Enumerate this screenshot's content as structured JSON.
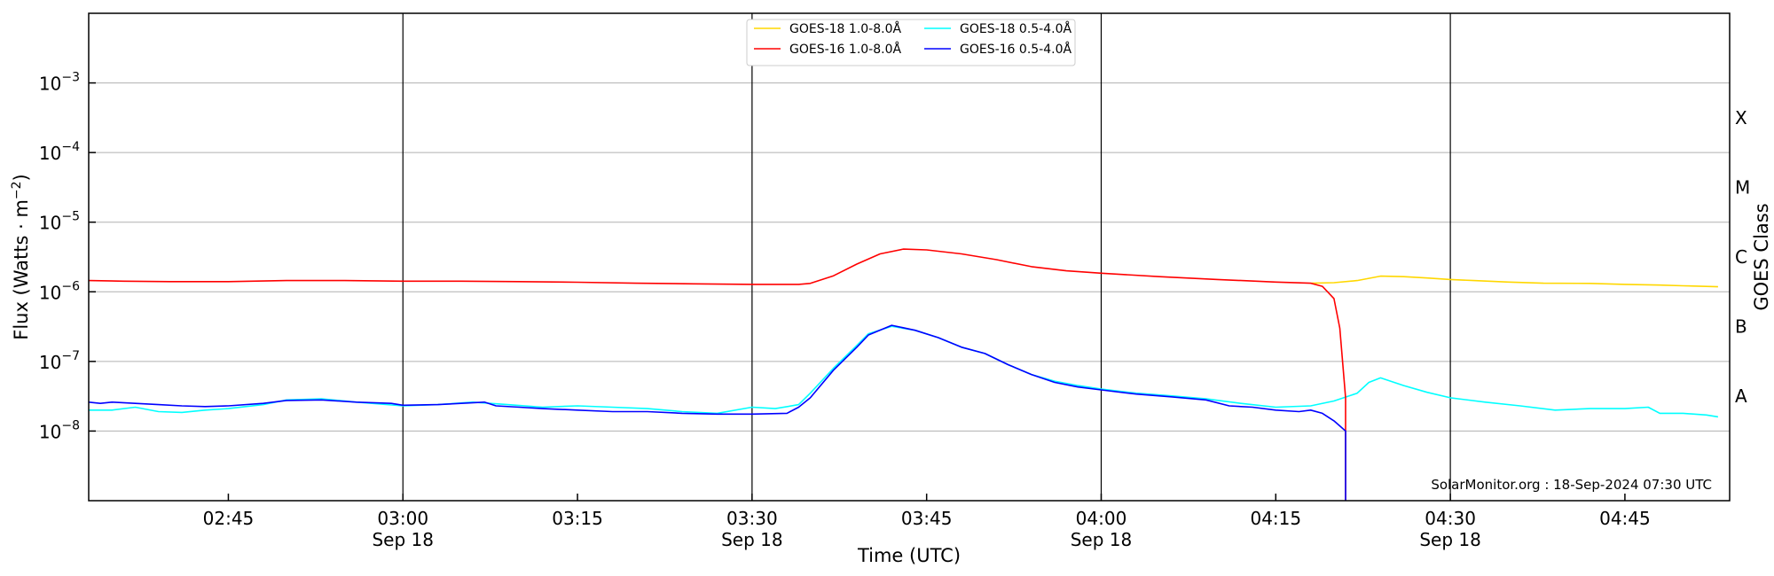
{
  "chart_data": {
    "type": "line",
    "xlabel": "Time (UTC)",
    "ylabel_main": "Flux (Watts · m",
    "ylabel_sup": "−2",
    "ylabel_close": ")",
    "right_label": "GOES Class",
    "credit": "SolarMonitor.org : 18-Sep-2024 07:30 UTC",
    "y_scale": "log",
    "ylim": [
      1e-09,
      0.01
    ],
    "xlim": [
      "02:33",
      "04:54"
    ],
    "grid": "horizontal",
    "legend_position": "top-center",
    "y_ticks": [
      {
        "value": 1e-08,
        "base": "10",
        "exp": "−8"
      },
      {
        "value": 1e-07,
        "base": "10",
        "exp": "−7"
      },
      {
        "value": 1e-06,
        "base": "10",
        "exp": "−6"
      },
      {
        "value": 1e-05,
        "base": "10",
        "exp": "−5"
      },
      {
        "value": 0.0001,
        "base": "10",
        "exp": "−4"
      },
      {
        "value": 0.001,
        "base": "10",
        "exp": "−3"
      }
    ],
    "x_ticks": [
      {
        "time": "02:45",
        "label": "02:45",
        "date": ""
      },
      {
        "time": "03:00",
        "label": "03:00",
        "date": "Sep 18"
      },
      {
        "time": "03:15",
        "label": "03:15",
        "date": ""
      },
      {
        "time": "03:30",
        "label": "03:30",
        "date": "Sep 18"
      },
      {
        "time": "03:45",
        "label": "03:45",
        "date": ""
      },
      {
        "time": "04:00",
        "label": "04:00",
        "date": "Sep 18"
      },
      {
        "time": "04:15",
        "label": "04:15",
        "date": ""
      },
      {
        "time": "04:30",
        "label": "04:30",
        "date": "Sep 18"
      },
      {
        "time": "04:45",
        "label": "04:45",
        "date": ""
      }
    ],
    "goes_classes": [
      {
        "label": "A",
        "value": 3.16e-08
      },
      {
        "label": "B",
        "value": 3.16e-07
      },
      {
        "label": "C",
        "value": 3.16e-06
      },
      {
        "label": "M",
        "value": 3.16e-05
      },
      {
        "label": "X",
        "value": 0.000316
      }
    ],
    "series": [
      {
        "name": "GOES-18 1.0-8.0Å",
        "color": "#ffd700",
        "points": [
          [
            "04:18",
            1.33e-06
          ],
          [
            "04:20",
            1.35e-06
          ],
          [
            "04:22",
            1.45e-06
          ],
          [
            "04:24",
            1.68e-06
          ],
          [
            "04:26",
            1.65e-06
          ],
          [
            "04:28",
            1.58e-06
          ],
          [
            "04:30",
            1.5e-06
          ],
          [
            "04:32",
            1.45e-06
          ],
          [
            "04:35",
            1.38e-06
          ],
          [
            "04:38",
            1.33e-06
          ],
          [
            "04:42",
            1.32e-06
          ],
          [
            "04:45",
            1.28e-06
          ],
          [
            "04:48",
            1.25e-06
          ],
          [
            "04:50",
            1.22e-06
          ],
          [
            "04:53",
            1.18e-06
          ]
        ]
      },
      {
        "name": "GOES-18 0.5-4.0Å",
        "color": "#00ffff",
        "points": [
          [
            "02:33",
            2e-08
          ],
          [
            "02:35",
            2e-08
          ],
          [
            "02:37",
            2.2e-08
          ],
          [
            "02:39",
            1.9e-08
          ],
          [
            "02:41",
            1.85e-08
          ],
          [
            "02:43",
            2e-08
          ],
          [
            "02:45",
            2.1e-08
          ],
          [
            "02:48",
            2.4e-08
          ],
          [
            "02:50",
            2.8e-08
          ],
          [
            "02:53",
            2.9e-08
          ],
          [
            "02:56",
            2.6e-08
          ],
          [
            "03:00",
            2.3e-08
          ],
          [
            "03:03",
            2.4e-08
          ],
          [
            "03:06",
            2.6e-08
          ],
          [
            "03:09",
            2.4e-08
          ],
          [
            "03:12",
            2.2e-08
          ],
          [
            "03:15",
            2.3e-08
          ],
          [
            "03:18",
            2.2e-08
          ],
          [
            "03:21",
            2.1e-08
          ],
          [
            "03:24",
            1.9e-08
          ],
          [
            "03:27",
            1.8e-08
          ],
          [
            "03:30",
            2.2e-08
          ],
          [
            "03:32",
            2.1e-08
          ],
          [
            "03:34",
            2.4e-08
          ],
          [
            "03:35",
            3.5e-08
          ],
          [
            "03:37",
            8e-08
          ],
          [
            "03:39",
            1.7e-07
          ],
          [
            "03:40",
            2.5e-07
          ],
          [
            "03:42",
            3.2e-07
          ],
          [
            "03:44",
            2.8e-07
          ],
          [
            "03:46",
            2.2e-07
          ],
          [
            "03:48",
            1.6e-07
          ],
          [
            "03:50",
            1.3e-07
          ],
          [
            "03:52",
            9e-08
          ],
          [
            "03:54",
            6.5e-08
          ],
          [
            "03:56",
            5.2e-08
          ],
          [
            "03:58",
            4.5e-08
          ],
          [
            "04:00",
            4e-08
          ],
          [
            "04:03",
            3.5e-08
          ],
          [
            "04:06",
            3.2e-08
          ],
          [
            "04:09",
            2.9e-08
          ],
          [
            "04:12",
            2.5e-08
          ],
          [
            "04:15",
            2.2e-08
          ],
          [
            "04:18",
            2.3e-08
          ],
          [
            "04:20",
            2.7e-08
          ],
          [
            "04:22",
            3.5e-08
          ],
          [
            "04:23",
            5e-08
          ],
          [
            "04:24",
            5.8e-08
          ],
          [
            "04:26",
            4.5e-08
          ],
          [
            "04:28",
            3.6e-08
          ],
          [
            "04:30",
            3e-08
          ],
          [
            "04:33",
            2.6e-08
          ],
          [
            "04:36",
            2.3e-08
          ],
          [
            "04:39",
            2e-08
          ],
          [
            "04:42",
            2.1e-08
          ],
          [
            "04:45",
            2.1e-08
          ],
          [
            "04:47",
            2.2e-08
          ],
          [
            "04:48",
            1.8e-08
          ],
          [
            "04:50",
            1.8e-08
          ],
          [
            "04:52",
            1.7e-08
          ],
          [
            "04:53",
            1.6e-08
          ]
        ]
      },
      {
        "name": "GOES-16 1.0-8.0Å",
        "color": "#ff0000",
        "points": [
          [
            "02:33",
            1.45e-06
          ],
          [
            "02:36",
            1.42e-06
          ],
          [
            "02:40",
            1.4e-06
          ],
          [
            "02:45",
            1.4e-06
          ],
          [
            "02:50",
            1.45e-06
          ],
          [
            "02:55",
            1.45e-06
          ],
          [
            "03:00",
            1.42e-06
          ],
          [
            "03:05",
            1.42e-06
          ],
          [
            "03:10",
            1.4e-06
          ],
          [
            "03:15",
            1.37e-06
          ],
          [
            "03:20",
            1.33e-06
          ],
          [
            "03:25",
            1.3e-06
          ],
          [
            "03:30",
            1.28e-06
          ],
          [
            "03:34",
            1.28e-06
          ],
          [
            "03:35",
            1.32e-06
          ],
          [
            "03:37",
            1.7e-06
          ],
          [
            "03:39",
            2.5e-06
          ],
          [
            "03:41",
            3.5e-06
          ],
          [
            "03:43",
            4.1e-06
          ],
          [
            "03:45",
            4e-06
          ],
          [
            "03:48",
            3.5e-06
          ],
          [
            "03:51",
            2.9e-06
          ],
          [
            "03:54",
            2.3e-06
          ],
          [
            "03:57",
            2e-06
          ],
          [
            "04:00",
            1.85e-06
          ],
          [
            "04:05",
            1.65e-06
          ],
          [
            "04:10",
            1.5e-06
          ],
          [
            "04:15",
            1.38e-06
          ],
          [
            "04:18",
            1.33e-06
          ],
          [
            "04:19",
            1.2e-06
          ],
          [
            "04:20",
            8e-07
          ],
          [
            "04:20.5",
            3e-07
          ],
          [
            "04:21",
            3e-08
          ],
          [
            "04:21",
            1e-09
          ]
        ]
      },
      {
        "name": "GOES-16 0.5-4.0Å",
        "color": "#0000ff",
        "points": [
          [
            "02:33",
            2.6e-08
          ],
          [
            "02:34",
            2.5e-08
          ],
          [
            "02:35",
            2.6e-08
          ],
          [
            "02:37",
            2.5e-08
          ],
          [
            "02:39",
            2.4e-08
          ],
          [
            "02:41",
            2.3e-08
          ],
          [
            "02:43",
            2.25e-08
          ],
          [
            "02:45",
            2.3e-08
          ],
          [
            "02:48",
            2.5e-08
          ],
          [
            "02:50",
            2.75e-08
          ],
          [
            "02:53",
            2.8e-08
          ],
          [
            "02:56",
            2.6e-08
          ],
          [
            "02:59",
            2.5e-08
          ],
          [
            "03:00",
            2.35e-08
          ],
          [
            "03:03",
            2.4e-08
          ],
          [
            "03:05",
            2.5e-08
          ],
          [
            "03:07",
            2.6e-08
          ],
          [
            "03:08",
            2.3e-08
          ],
          [
            "03:10",
            2.2e-08
          ],
          [
            "03:12",
            2.1e-08
          ],
          [
            "03:15",
            2e-08
          ],
          [
            "03:18",
            1.9e-08
          ],
          [
            "03:21",
            1.9e-08
          ],
          [
            "03:24",
            1.8e-08
          ],
          [
            "03:27",
            1.75e-08
          ],
          [
            "03:30",
            1.75e-08
          ],
          [
            "03:33",
            1.8e-08
          ],
          [
            "03:34",
            2.2e-08
          ],
          [
            "03:35",
            3e-08
          ],
          [
            "03:37",
            7.5e-08
          ],
          [
            "03:39",
            1.6e-07
          ],
          [
            "03:40",
            2.4e-07
          ],
          [
            "03:42",
            3.3e-07
          ],
          [
            "03:44",
            2.8e-07
          ],
          [
            "03:46",
            2.2e-07
          ],
          [
            "03:48",
            1.6e-07
          ],
          [
            "03:50",
            1.3e-07
          ],
          [
            "03:52",
            9e-08
          ],
          [
            "03:54",
            6.5e-08
          ],
          [
            "03:56",
            5e-08
          ],
          [
            "03:58",
            4.3e-08
          ],
          [
            "04:00",
            3.9e-08
          ],
          [
            "04:03",
            3.4e-08
          ],
          [
            "04:06",
            3.1e-08
          ],
          [
            "04:09",
            2.8e-08
          ],
          [
            "04:11",
            2.3e-08
          ],
          [
            "04:13",
            2.2e-08
          ],
          [
            "04:15",
            2e-08
          ],
          [
            "04:17",
            1.9e-08
          ],
          [
            "04:18",
            2e-08
          ],
          [
            "04:19",
            1.8e-08
          ],
          [
            "04:20",
            1.4e-08
          ],
          [
            "04:21",
            1e-08
          ],
          [
            "04:21",
            1e-09
          ]
        ]
      }
    ]
  }
}
